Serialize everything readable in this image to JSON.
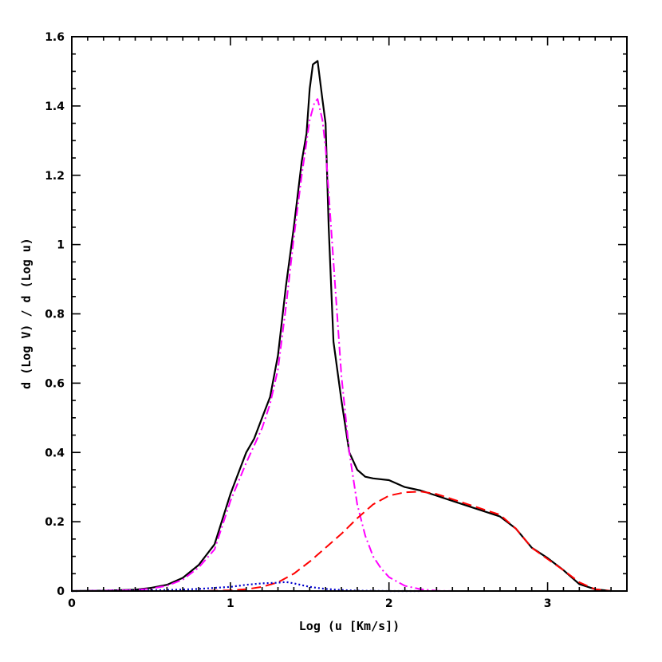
{
  "chart_data": {
    "type": "line",
    "title": "",
    "xlabel": "Log (u [Km/s])",
    "ylabel": "d (Log V) / d (Log u)",
    "xlim": [
      0,
      3.5
    ],
    "ylim": [
      0,
      1.6
    ],
    "xticks": [
      0,
      1,
      2,
      3
    ],
    "xtick_labels": [
      "0",
      "1",
      "2",
      "3"
    ],
    "yticks": [
      0,
      0.2,
      0.4,
      0.6,
      0.8,
      1.0,
      1.2,
      1.4,
      1.6
    ],
    "ytick_labels": [
      "0",
      "0.2",
      "0.4",
      "0.6",
      "0.8",
      "1",
      "1.2",
      "1.4",
      "1.6"
    ],
    "grid": false,
    "legend": "none",
    "series": [
      {
        "style": "solid",
        "color": "#000000",
        "x": [
          0,
          0.2,
          0.4,
          0.5,
          0.6,
          0.7,
          0.8,
          0.9,
          1.0,
          1.1,
          1.15,
          1.2,
          1.25,
          1.3,
          1.35,
          1.4,
          1.45,
          1.48,
          1.5,
          1.52,
          1.55,
          1.58,
          1.6,
          1.62,
          1.65,
          1.7,
          1.75,
          1.8,
          1.85,
          1.9,
          2.0,
          2.1,
          2.2,
          2.3,
          2.4,
          2.5,
          2.6,
          2.7,
          2.8,
          2.9,
          3.0,
          3.1,
          3.2,
          3.3,
          3.4
        ],
        "y": [
          0,
          0.001,
          0.004,
          0.009,
          0.018,
          0.038,
          0.075,
          0.135,
          0.28,
          0.4,
          0.44,
          0.5,
          0.56,
          0.68,
          0.88,
          1.05,
          1.24,
          1.32,
          1.45,
          1.52,
          1.53,
          1.42,
          1.35,
          1.05,
          0.72,
          0.55,
          0.4,
          0.35,
          0.33,
          0.325,
          0.32,
          0.3,
          0.29,
          0.275,
          0.26,
          0.245,
          0.23,
          0.215,
          0.18,
          0.125,
          0.095,
          0.06,
          0.02,
          0.005,
          0
        ]
      },
      {
        "style": "dash-dot",
        "color": "#ff00ff",
        "x": [
          0,
          0.2,
          0.4,
          0.5,
          0.6,
          0.7,
          0.8,
          0.9,
          1.0,
          1.1,
          1.2,
          1.25,
          1.3,
          1.35,
          1.4,
          1.45,
          1.5,
          1.53,
          1.55,
          1.58,
          1.6,
          1.65,
          1.7,
          1.75,
          1.8,
          1.85,
          1.9,
          1.95,
          2.0,
          2.1,
          2.2,
          2.3,
          2.4
        ],
        "y": [
          0,
          0.001,
          0.003,
          0.007,
          0.015,
          0.033,
          0.068,
          0.12,
          0.26,
          0.37,
          0.47,
          0.54,
          0.64,
          0.82,
          1.02,
          1.2,
          1.36,
          1.41,
          1.42,
          1.36,
          1.28,
          0.95,
          0.62,
          0.4,
          0.25,
          0.16,
          0.1,
          0.065,
          0.04,
          0.015,
          0.005,
          0.001,
          0
        ]
      },
      {
        "style": "dashed",
        "color": "#ff0000",
        "x": [
          0.5,
          0.8,
          1.0,
          1.1,
          1.2,
          1.3,
          1.4,
          1.5,
          1.6,
          1.7,
          1.8,
          1.9,
          2.0,
          2.1,
          2.2,
          2.3,
          2.4,
          2.5,
          2.6,
          2.7,
          2.8,
          2.9,
          3.0,
          3.1,
          3.2,
          3.3,
          3.4
        ],
        "y": [
          0,
          0,
          0.002,
          0.005,
          0.012,
          0.025,
          0.05,
          0.085,
          0.125,
          0.165,
          0.21,
          0.25,
          0.275,
          0.285,
          0.287,
          0.28,
          0.265,
          0.25,
          0.235,
          0.22,
          0.18,
          0.125,
          0.092,
          0.06,
          0.025,
          0.005,
          0
        ]
      },
      {
        "style": "dotted",
        "color": "#0000cc",
        "x": [
          0,
          0.4,
          0.6,
          0.8,
          1.0,
          1.1,
          1.2,
          1.3,
          1.35,
          1.4,
          1.5,
          1.6,
          1.7,
          1.8,
          2.0,
          2.2
        ],
        "y": [
          0,
          0.001,
          0.003,
          0.006,
          0.012,
          0.018,
          0.022,
          0.024,
          0.026,
          0.022,
          0.012,
          0.006,
          0.003,
          0.001,
          0,
          0
        ]
      }
    ]
  }
}
